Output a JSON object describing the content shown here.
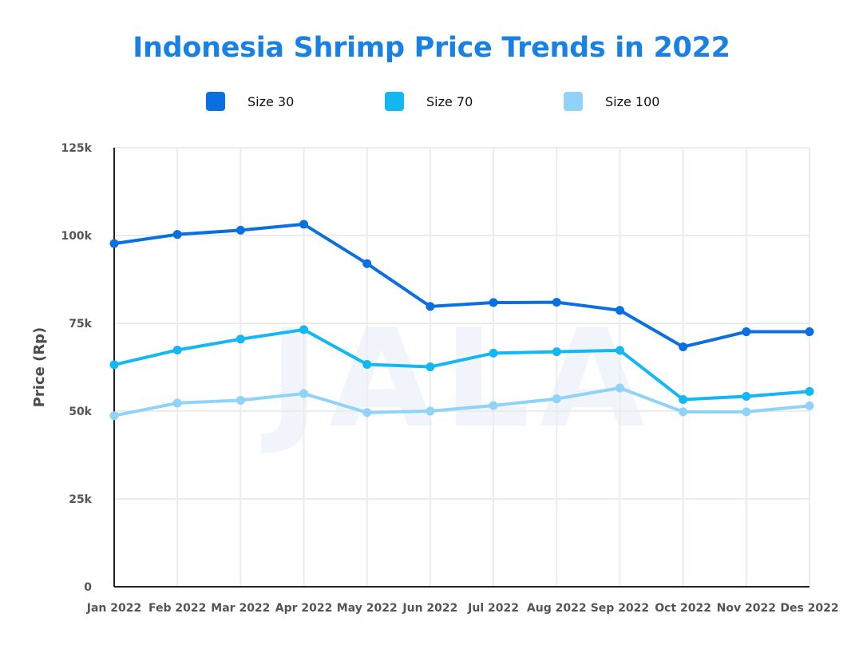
{
  "chart_data": {
    "type": "line",
    "title": "Indonesia Shrimp Price Trends in 2022",
    "xlabel": "",
    "ylabel": "Price (Rp)",
    "categories": [
      "Jan 2022",
      "Feb 2022",
      "Mar 2022",
      "Apr 2022",
      "May 2022",
      "Jun 2022",
      "Jul 2022",
      "Aug 2022",
      "Sep 2022",
      "Oct 2022",
      "Nov 2022",
      "Des 2022"
    ],
    "ylim": [
      0,
      125000
    ],
    "yticks": [
      0,
      25000,
      50000,
      75000,
      100000,
      125000
    ],
    "ytick_labels": [
      "0",
      "25k",
      "50k",
      "75k",
      "100k",
      "125k"
    ],
    "grid": true,
    "legend_position": "top",
    "watermark": "JALA",
    "series": [
      {
        "name": "Size 30",
        "color": "#0a6fe0",
        "values": [
          97700,
          100300,
          101500,
          103200,
          92000,
          79800,
          80900,
          81000,
          78700,
          68300,
          72600,
          72600
        ]
      },
      {
        "name": "Size 70",
        "color": "#12b7f4",
        "values": [
          63200,
          67400,
          70500,
          73200,
          63300,
          62600,
          66500,
          66900,
          67300,
          53300,
          54200,
          55600
        ]
      },
      {
        "name": "Size 100",
        "color": "#8fd3f9",
        "values": [
          48700,
          52300,
          53100,
          55000,
          49600,
          50000,
          51600,
          53500,
          56600,
          49800,
          49800,
          51500
        ]
      }
    ]
  },
  "colors": {
    "title": "#1781e6",
    "axis": "#222222",
    "grid": "#ececec"
  }
}
